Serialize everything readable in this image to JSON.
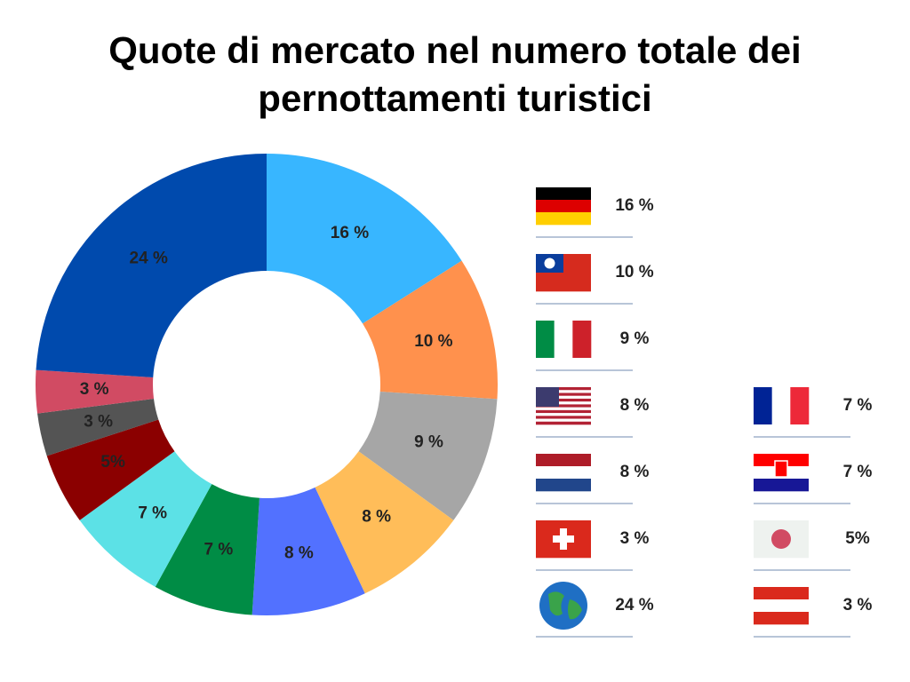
{
  "chart_data": {
    "type": "pie",
    "title": "Quote di mercato nel numero totale dei pernottamenti turistici",
    "categories": [
      null,
      null,
      null,
      null,
      null,
      null,
      null,
      null,
      null,
      null,
      null
    ],
    "values": [
      16,
      10,
      9,
      8,
      8,
      7,
      7,
      5,
      3,
      3,
      24
    ],
    "value_labels": [
      "16 %",
      "10 %",
      "9 %",
      "8 %",
      "8 %",
      "7 %",
      "7 %",
      "5%",
      "3 %",
      "3 %",
      "24 %"
    ],
    "colors": [
      "#38b6ff",
      "#ff914d",
      "#a6a6a6",
      "#ffbd59",
      "#5271ff",
      "#008c45",
      "#5ce1e6",
      "#8b0000",
      "#545454",
      "#d14b63",
      "#004aad"
    ],
    "donut": true
  }
}
